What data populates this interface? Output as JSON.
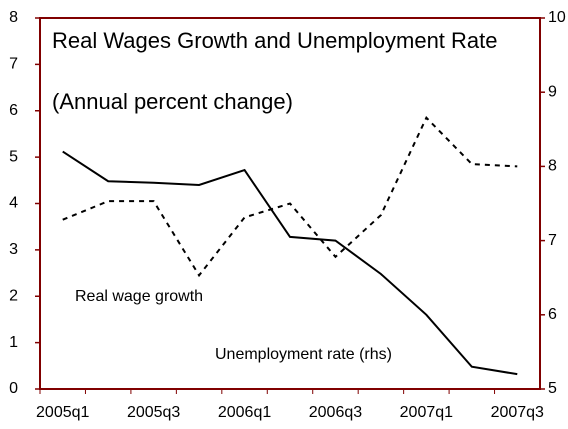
{
  "chart_data": {
    "type": "line",
    "title": "Real Wages Growth and Unemployment Rate",
    "subtitle": "(Annual percent change)",
    "categories": [
      "2005q1",
      null,
      "2005q3",
      null,
      "2006q1",
      null,
      "2006q3",
      null,
      "2007q1",
      null,
      "2007q3"
    ],
    "series": [
      {
        "name": "Real wage growth",
        "color": "#000000",
        "dash": true,
        "values": [
          3.65,
          4.05,
          4.05,
          2.45,
          3.7,
          4.0,
          2.85,
          3.75,
          5.85,
          4.85,
          4.8
        ]
      },
      {
        "name": "Unemployment rate (rhs)",
        "color": "#000000",
        "dash": false,
        "axis": "y2",
        "values": [
          8.2,
          7.8,
          7.78,
          7.75,
          7.95,
          7.05,
          7.0,
          6.55,
          6.0,
          5.3,
          5.2
        ]
      }
    ],
    "ylim": [
      0,
      8
    ],
    "yticks": [
      0,
      1,
      2,
      3,
      4,
      5,
      6,
      7,
      8
    ],
    "y2lim": [
      5,
      10
    ],
    "y2ticks": [
      5,
      6,
      7,
      8,
      9,
      10
    ],
    "frame_color": "#800000"
  }
}
